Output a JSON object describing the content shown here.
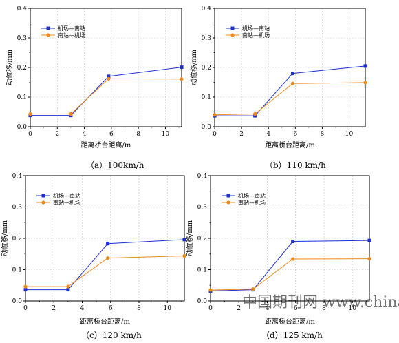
{
  "colors": {
    "series1": "#1f2fd0",
    "series2": "#f08a1a",
    "grid": "#c8c8c8",
    "axis": "#000000"
  },
  "chart_data": [
    {
      "type": "line",
      "caption": "（a）100km/h",
      "xlabel": "距离桥台距离/m",
      "ylabel": "动位移/mm",
      "xlim": [
        0,
        11.2
      ],
      "ylim": [
        0,
        0.4
      ],
      "xticks": [
        0,
        2,
        4,
        6,
        8,
        10
      ],
      "yticks": [
        0.0,
        0.1,
        0.2,
        0.3,
        0.4
      ],
      "grid": true,
      "legend_position": "top-left",
      "series": [
        {
          "name": "机场—南站",
          "x": [
            0,
            3,
            5.8,
            11.2
          ],
          "y": [
            0.038,
            0.038,
            0.17,
            0.201
          ]
        },
        {
          "name": "南站—机场",
          "x": [
            0,
            3,
            5.8,
            11.2
          ],
          "y": [
            0.043,
            0.043,
            0.162,
            0.161
          ]
        }
      ]
    },
    {
      "type": "line",
      "caption": "（b）110 km/h",
      "xlabel": "距离桥台距离/m",
      "ylabel": "动位移/mm",
      "xlim": [
        0,
        11.2
      ],
      "ylim": [
        0,
        0.4
      ],
      "xticks": [
        0,
        2,
        4,
        6,
        8,
        10
      ],
      "yticks": [
        0.0,
        0.1,
        0.2,
        0.3,
        0.4
      ],
      "grid": true,
      "legend_position": "top-left",
      "series": [
        {
          "name": "机场—南站",
          "x": [
            0,
            3,
            5.8,
            11.2
          ],
          "y": [
            0.037,
            0.037,
            0.18,
            0.205
          ]
        },
        {
          "name": "南站—机场",
          "x": [
            0,
            3,
            5.8,
            11.2
          ],
          "y": [
            0.04,
            0.043,
            0.146,
            0.149
          ]
        }
      ]
    },
    {
      "type": "line",
      "caption": "（c）120 km/h",
      "xlabel": "距离桥台距离/m",
      "ylabel": "动位移/mm",
      "xlim": [
        0,
        11.2
      ],
      "ylim": [
        0,
        0.4
      ],
      "xticks": [
        0,
        2,
        4,
        6,
        8,
        10
      ],
      "yticks": [
        0.0,
        0.1,
        0.2,
        0.3,
        0.4
      ],
      "grid": true,
      "legend_position": "top-left",
      "series": [
        {
          "name": "机场—南站",
          "x": [
            0,
            3,
            5.8,
            11.2
          ],
          "y": [
            0.036,
            0.036,
            0.183,
            0.196
          ]
        },
        {
          "name": "南站—机场",
          "x": [
            0,
            3,
            5.8,
            11.2
          ],
          "y": [
            0.046,
            0.046,
            0.137,
            0.144
          ]
        }
      ]
    },
    {
      "type": "line",
      "caption": "（d）125 km/h",
      "xlabel": "距离桥台距离/m",
      "ylabel": "动位移/mm",
      "xlim": [
        0,
        11.2
      ],
      "ylim": [
        0,
        0.4
      ],
      "xticks": [
        0,
        2,
        4,
        6,
        8,
        10
      ],
      "yticks": [
        0.0,
        0.1,
        0.2,
        0.3,
        0.4
      ],
      "grid": true,
      "legend_position": "top-left",
      "series": [
        {
          "name": "机场—南站",
          "x": [
            0,
            3,
            5.8,
            11.2
          ],
          "y": [
            0.032,
            0.036,
            0.19,
            0.193
          ]
        },
        {
          "name": "南站—机场",
          "x": [
            0,
            3,
            5.8,
            11.2
          ],
          "y": [
            0.035,
            0.038,
            0.134,
            0.135
          ]
        }
      ]
    }
  ],
  "watermark": "中国期刊网 www.chinaqking.com"
}
